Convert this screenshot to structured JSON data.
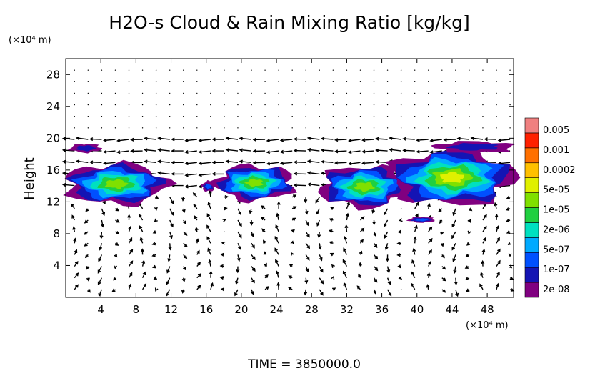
{
  "chart_data": {
    "type": "heatmap",
    "title": "H2O-s Cloud & Rain Mixing Ratio [kg/kg]",
    "ylabel": "Height",
    "y_unit": "(×10⁴ m)",
    "x_unit": "(×10⁴ m)",
    "xlim": [
      0,
      51
    ],
    "ylim": [
      0,
      30
    ],
    "x_ticks": [
      4,
      8,
      12,
      16,
      20,
      24,
      28,
      32,
      36,
      40,
      44,
      48
    ],
    "y_ticks": [
      4,
      8,
      12,
      16,
      20,
      24,
      28
    ],
    "colorbar": {
      "labels": [
        "0.005",
        "0.001",
        "0.0002",
        "5e-05",
        "1e-05",
        "2e-06",
        "5e-07",
        "1e-07",
        "2e-08"
      ],
      "colors": [
        "#800080",
        "#1414b4",
        "#0050ff",
        "#00aaff",
        "#00e0c0",
        "#20d040",
        "#80e000",
        "#e0f000",
        "#ffc000",
        "#ff7000",
        "#ff2000",
        "#f08080"
      ]
    },
    "annotation": "TIME  =  3850000.0",
    "cloud_regions": [
      {
        "x": [
          0.5,
          4
        ],
        "y": [
          18.2,
          19.3
        ],
        "level": 1
      },
      {
        "x": [
          0,
          11.5
        ],
        "y": [
          11.7,
          16.8
        ],
        "level": 6
      },
      {
        "x": [
          15.5,
          17
        ],
        "y": [
          13.3,
          14.6
        ],
        "level": 2
      },
      {
        "x": [
          17,
          26
        ],
        "y": [
          12.2,
          16.6
        ],
        "level": 6
      },
      {
        "x": [
          29,
          39
        ],
        "y": [
          11.3,
          16.5
        ],
        "level": 6
      },
      {
        "x": [
          37,
          51
        ],
        "y": [
          11.6,
          18.5
        ],
        "level": 7
      },
      {
        "x": [
          42,
          51
        ],
        "y": [
          18.2,
          19.6
        ],
        "level": 1
      },
      {
        "x": [
          39,
          42
        ],
        "y": [
          9.4,
          10.1
        ],
        "level": 2
      }
    ]
  }
}
